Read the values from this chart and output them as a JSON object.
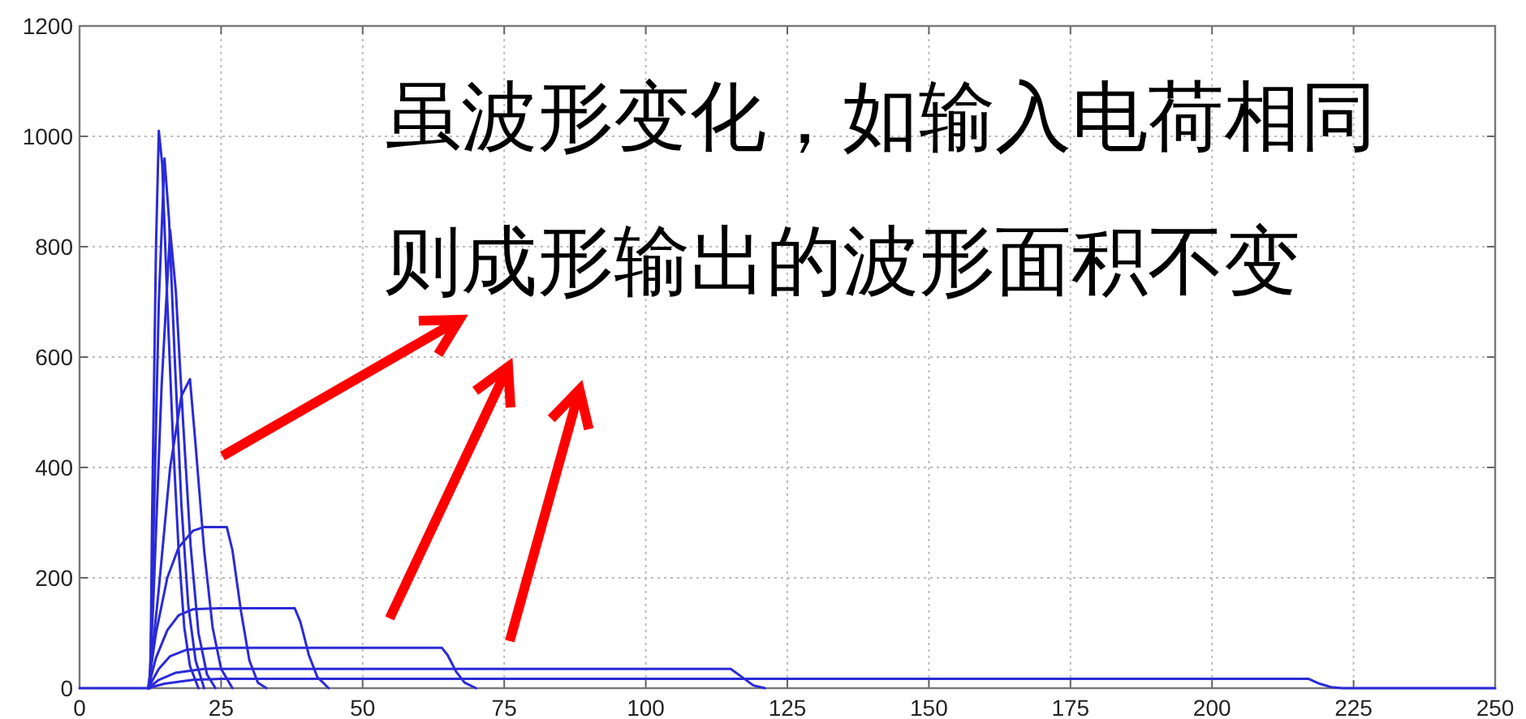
{
  "chart_data": {
    "type": "line",
    "xlim": [
      0,
      250
    ],
    "ylim": [
      0,
      1200
    ],
    "xticks": [
      0,
      25,
      50,
      75,
      100,
      125,
      150,
      175,
      200,
      225,
      250
    ],
    "yticks": [
      0,
      200,
      400,
      600,
      800,
      1000,
      1200
    ],
    "grid": true,
    "annotations": [
      "虽波形变化，如输入电荷相同",
      "则成形输出的波形面积不变"
    ],
    "series": [
      {
        "color": "#2a2ad8",
        "x": [
          12.5,
          12.8,
          13.5,
          14,
          14.6,
          15.5,
          16.5,
          17.5,
          18.5,
          19.5,
          21
        ],
        "values": [
          0,
          300,
          800,
          1010,
          950,
          700,
          450,
          250,
          110,
          40,
          0
        ]
      },
      {
        "color": "#2a2ad8",
        "x": [
          12.4,
          13,
          14,
          15,
          15.8,
          16.8,
          18,
          19.2,
          20.5,
          22
        ],
        "values": [
          0,
          250,
          700,
          960,
          850,
          600,
          330,
          150,
          50,
          0
        ]
      },
      {
        "color": "#2a2ad8",
        "x": [
          12.3,
          13,
          14.5,
          16,
          17,
          18.3,
          19.6,
          21,
          22.5,
          24
        ],
        "values": [
          0,
          150,
          550,
          830,
          720,
          480,
          260,
          100,
          25,
          0
        ]
      },
      {
        "color": "#2a2ad8",
        "x": [
          12.2,
          14,
          16,
          18,
          19.5,
          20.5,
          22,
          23.5,
          25,
          27
        ],
        "values": [
          0,
          180,
          400,
          530,
          560,
          440,
          250,
          110,
          35,
          0
        ]
      },
      {
        "color": "#2a2ad8",
        "x": [
          12.1,
          13.5,
          15.5,
          17.5,
          20,
          22,
          26,
          27,
          28.5,
          30,
          31.5,
          33
        ],
        "values": [
          0,
          100,
          200,
          255,
          285,
          292,
          292,
          250,
          140,
          50,
          10,
          0
        ]
      },
      {
        "color": "#2a2ad8",
        "x": [
          12.1,
          13.5,
          15.5,
          17.5,
          20,
          25,
          38,
          39,
          40.5,
          42,
          44
        ],
        "values": [
          0,
          55,
          105,
          132,
          143,
          145,
          145,
          120,
          60,
          20,
          0
        ]
      },
      {
        "color": "#2a2ad8",
        "x": [
          12.1,
          14,
          16,
          19,
          25,
          64,
          65,
          66.5,
          68,
          70
        ],
        "values": [
          0,
          35,
          58,
          70,
          73,
          73,
          60,
          30,
          10,
          0
        ]
      },
      {
        "color": "#2a2ad8",
        "x": [
          12.1,
          14,
          17,
          22,
          115,
          117,
          119,
          121
        ],
        "values": [
          0,
          15,
          28,
          35,
          35,
          20,
          5,
          0
        ]
      },
      {
        "color": "#2a2ad8",
        "x": [
          0,
          12,
          15,
          20,
          25,
          217,
          219,
          221,
          223,
          250
        ],
        "values": [
          0,
          0,
          8,
          15,
          17,
          17,
          8,
          2,
          0,
          0
        ]
      }
    ]
  }
}
